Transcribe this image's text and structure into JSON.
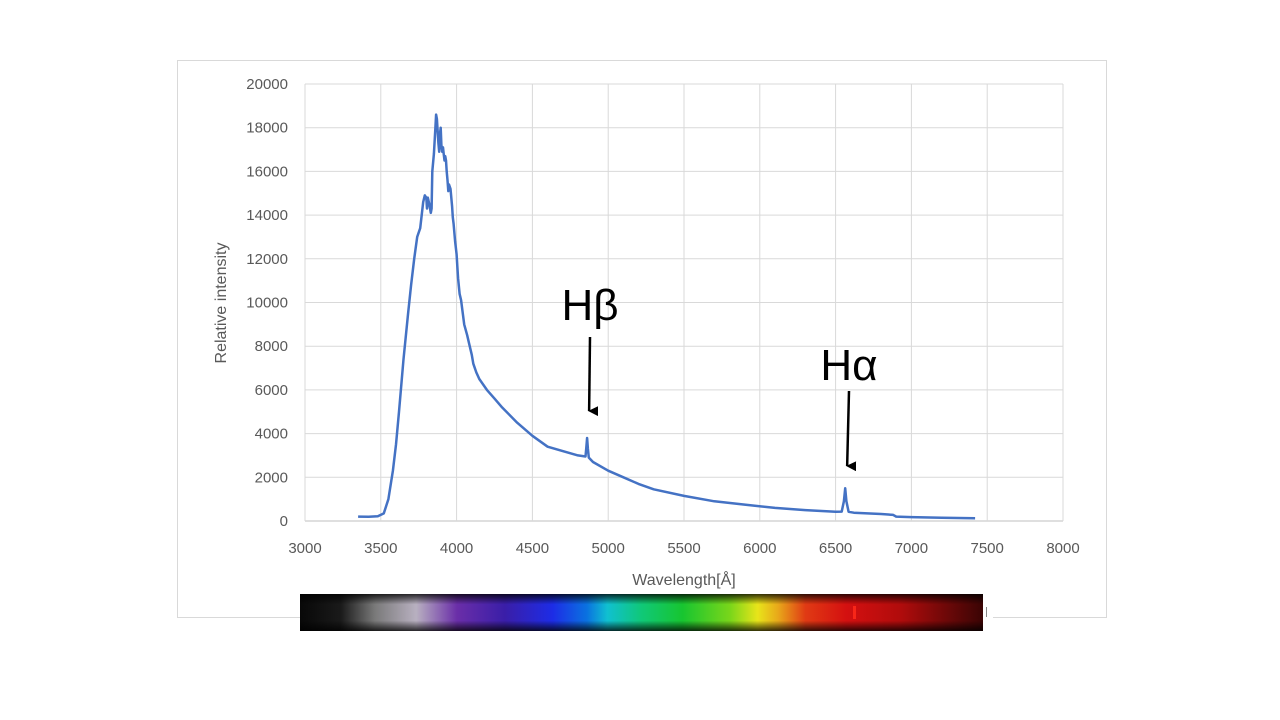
{
  "chart_data": {
    "type": "line",
    "xlabel": "Wavelength[Å]",
    "ylabel": "Relative intensity",
    "xlim": [
      3000,
      8000
    ],
    "ylim": [
      0,
      20000
    ],
    "xticks": [
      3000,
      3500,
      4000,
      4500,
      5000,
      5500,
      6000,
      6500,
      7000,
      7500,
      8000
    ],
    "yticks": [
      0,
      2000,
      4000,
      6000,
      8000,
      10000,
      12000,
      14000,
      16000,
      18000,
      20000
    ],
    "grid": true,
    "series": [
      {
        "color": "#4472c4",
        "x": [
          3350,
          3420,
          3480,
          3520,
          3550,
          3580,
          3600,
          3620,
          3650,
          3680,
          3700,
          3720,
          3740,
          3760,
          3780,
          3790,
          3800,
          3805,
          3810,
          3820,
          3830,
          3835,
          3840,
          3850,
          3860,
          3865,
          3870,
          3880,
          3885,
          3890,
          3895,
          3900,
          3905,
          3910,
          3915,
          3920,
          3925,
          3930,
          3935,
          3940,
          3945,
          3950,
          3960,
          3970,
          3975,
          3980,
          3990,
          4000,
          4005,
          4010,
          4020,
          4030,
          4050,
          4070,
          4080,
          4100,
          4110,
          4130,
          4150,
          4200,
          4250,
          4300,
          4400,
          4500,
          4600,
          4700,
          4800,
          4850,
          4855,
          4861,
          4866,
          4872,
          4900,
          5000,
          5100,
          5200,
          5300,
          5500,
          5700,
          5900,
          6100,
          6300,
          6500,
          6540,
          6555,
          6563,
          6571,
          6586,
          6620,
          6800,
          6880,
          6900,
          7000,
          7200,
          7420
        ],
        "y": [
          200,
          190,
          220,
          350,
          1000,
          2300,
          3500,
          5000,
          7400,
          9500,
          10800,
          12000,
          13000,
          13400,
          14600,
          14900,
          14800,
          14300,
          14800,
          14500,
          14100,
          14300,
          16000,
          16800,
          18000,
          18600,
          18400,
          17300,
          16900,
          17700,
          18000,
          17200,
          16900,
          17100,
          16800,
          16500,
          16700,
          16500,
          16000,
          15600,
          15100,
          15400,
          15200,
          14400,
          13900,
          13600,
          12800,
          12200,
          11600,
          11100,
          10400,
          10100,
          9000,
          8500,
          8200,
          7600,
          7200,
          6800,
          6500,
          6000,
          5600,
          5200,
          4500,
          3900,
          3400,
          3200,
          3000,
          2950,
          3300,
          3800,
          3300,
          2900,
          2700,
          2300,
          2000,
          1700,
          1450,
          1150,
          900,
          750,
          600,
          500,
          420,
          430,
          900,
          1500,
          900,
          420,
          380,
          320,
          280,
          200,
          180,
          150,
          130
        ]
      }
    ],
    "annotations": [
      {
        "text": "Hβ",
        "x": 4861
      },
      {
        "text": "Hα",
        "x": 6563
      }
    ]
  }
}
